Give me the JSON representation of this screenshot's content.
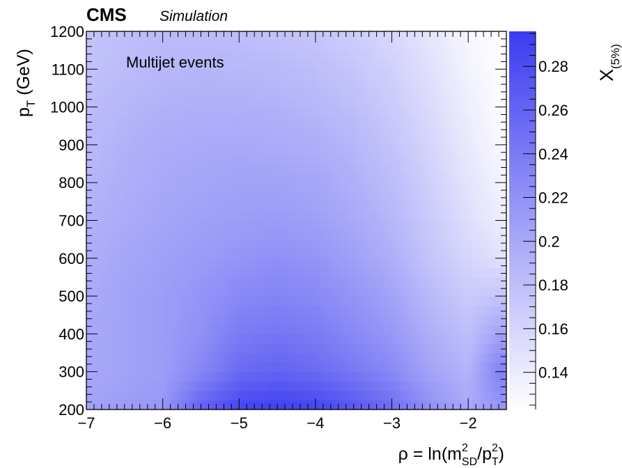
{
  "chart_data": {
    "type": "heatmap",
    "experiment_label": "CMS",
    "experiment_sublabel": "Simulation",
    "annotation": "Multijet events",
    "xlabel": {
      "text": "ρ = ln(m",
      "sup1": "2",
      "sub1": "SD",
      "mid": "/p",
      "sup2": "2",
      "sub2": "T",
      "end": ")"
    },
    "ylabel": {
      "text": "p",
      "sub": "T",
      "unit": " (GeV)"
    },
    "zlabel": {
      "text": "X",
      "sub": "(5%)"
    },
    "xlim": [
      -7,
      -1.5
    ],
    "ylim": [
      200,
      1200
    ],
    "zlim": [
      0.123,
      0.296
    ],
    "x_ticks": [
      -7,
      -6,
      -5,
      -4,
      -3,
      -2
    ],
    "x_tick_labels": [
      "−7",
      "−6",
      "−5",
      "−4",
      "−3",
      "−2"
    ],
    "y_ticks": [
      200,
      300,
      400,
      500,
      600,
      700,
      800,
      900,
      1000,
      1100,
      1200
    ],
    "y_tick_labels": [
      "200",
      "300",
      "400",
      "500",
      "600",
      "700",
      "800",
      "900",
      "1000",
      "1100",
      "1200"
    ],
    "z_ticks": [
      0.14,
      0.16,
      0.18,
      0.2,
      0.22,
      0.24,
      0.26,
      0.28
    ],
    "z_tick_labels": [
      "0.14",
      "0.16",
      "0.18",
      "0.2",
      "0.22",
      "0.24",
      "0.26",
      "0.28"
    ],
    "colormap": {
      "low": "#ffffff",
      "high": "#3c3cf0"
    },
    "rho_points": [
      -7.0,
      -6.5,
      -6.0,
      -5.5,
      -5.0,
      -4.5,
      -4.0,
      -3.5,
      -3.0,
      -2.5,
      -2.0,
      -1.6
    ],
    "pt_points": [
      210,
      300,
      400,
      500,
      600,
      700,
      800,
      900,
      1000,
      1100,
      1190
    ],
    "values": [
      [
        0.205,
        0.21,
        0.215,
        0.26,
        0.285,
        0.29,
        0.285,
        0.27,
        0.25,
        0.22,
        0.2,
        0.215
      ],
      [
        0.2,
        0.205,
        0.21,
        0.23,
        0.255,
        0.262,
        0.255,
        0.243,
        0.228,
        0.205,
        0.19,
        0.235
      ],
      [
        0.2,
        0.205,
        0.21,
        0.222,
        0.24,
        0.245,
        0.24,
        0.228,
        0.215,
        0.195,
        0.18,
        0.205
      ],
      [
        0.198,
        0.205,
        0.21,
        0.218,
        0.228,
        0.232,
        0.228,
        0.218,
        0.205,
        0.185,
        0.17,
        0.175
      ],
      [
        0.195,
        0.202,
        0.207,
        0.212,
        0.218,
        0.222,
        0.218,
        0.208,
        0.195,
        0.175,
        0.16,
        0.15
      ],
      [
        0.192,
        0.198,
        0.203,
        0.207,
        0.21,
        0.212,
        0.208,
        0.2,
        0.188,
        0.17,
        0.152,
        0.14
      ],
      [
        0.188,
        0.195,
        0.2,
        0.203,
        0.205,
        0.205,
        0.202,
        0.194,
        0.182,
        0.165,
        0.147,
        0.135
      ],
      [
        0.185,
        0.192,
        0.197,
        0.199,
        0.2,
        0.198,
        0.195,
        0.188,
        0.176,
        0.16,
        0.142,
        0.13
      ],
      [
        0.182,
        0.188,
        0.192,
        0.194,
        0.194,
        0.192,
        0.188,
        0.181,
        0.17,
        0.155,
        0.138,
        0.127
      ],
      [
        0.178,
        0.183,
        0.187,
        0.188,
        0.187,
        0.185,
        0.181,
        0.174,
        0.164,
        0.15,
        0.134,
        0.125
      ],
      [
        0.175,
        0.18,
        0.183,
        0.183,
        0.181,
        0.178,
        0.174,
        0.168,
        0.158,
        0.146,
        0.131,
        0.124
      ]
    ]
  }
}
